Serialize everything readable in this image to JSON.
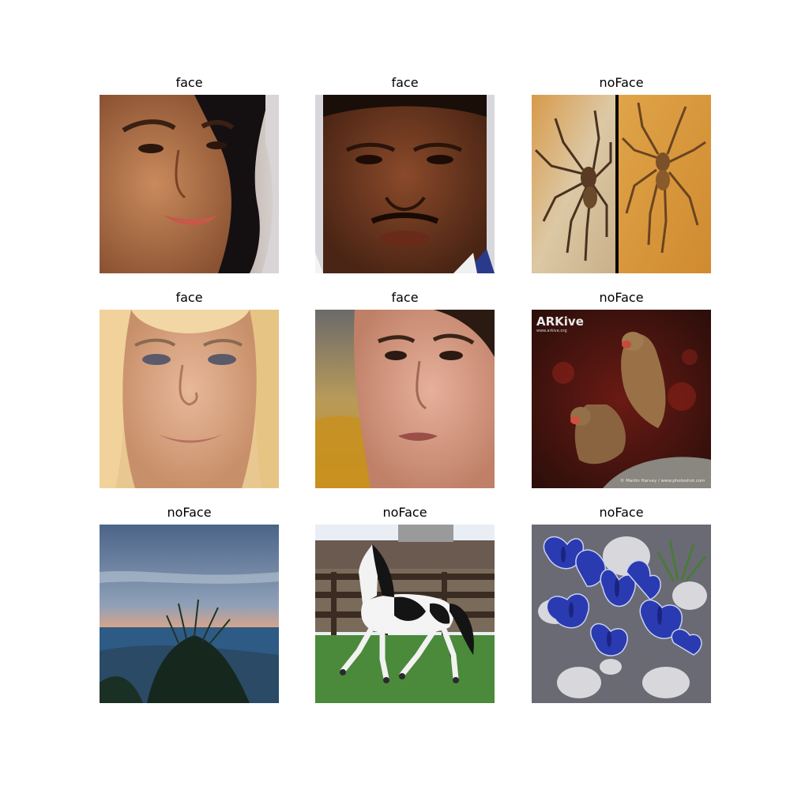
{
  "figure": {
    "background": "#ffffff",
    "panels": [
      {
        "title": "face",
        "subject": "smiling-woman-face",
        "row": 0,
        "col": 0
      },
      {
        "title": "face",
        "subject": "man-face",
        "row": 0,
        "col": 1
      },
      {
        "title": "noFace",
        "subject": "two-spiders",
        "row": 0,
        "col": 2
      },
      {
        "title": "face",
        "subject": "blonde-woman-face",
        "row": 1,
        "col": 0
      },
      {
        "title": "face",
        "subject": "dark-haired-woman-face",
        "row": 1,
        "col": 1
      },
      {
        "title": "noFace",
        "subject": "two-monkeys",
        "row": 1,
        "col": 2
      },
      {
        "title": "noFace",
        "subject": "sunset-sea-grass",
        "row": 2,
        "col": 0
      },
      {
        "title": "noFace",
        "subject": "running-horse",
        "row": 2,
        "col": 1
      },
      {
        "title": "noFace",
        "subject": "blue-butterflies",
        "row": 2,
        "col": 2
      }
    ],
    "watermarks": {
      "arkive_logo": "ARKive",
      "arkive_url": "www.arkive.org",
      "credit": "© Martin Harvey / www.photoshot.com"
    }
  }
}
